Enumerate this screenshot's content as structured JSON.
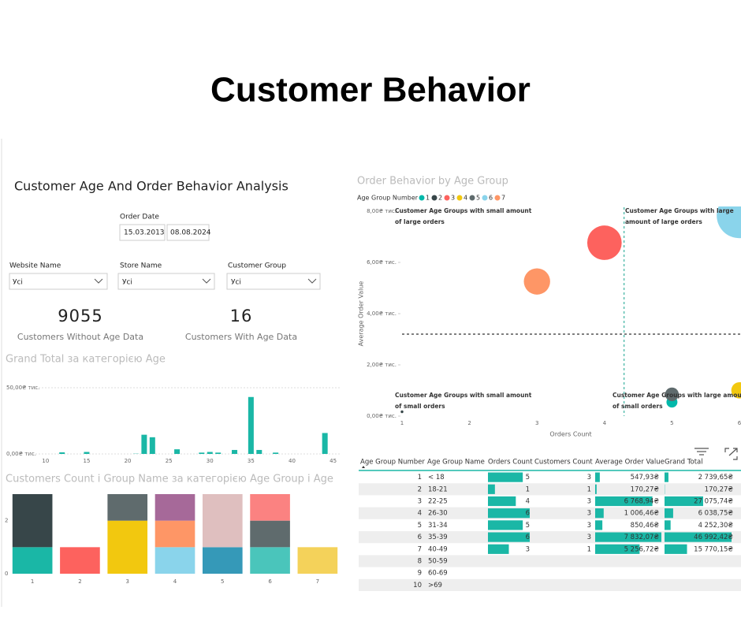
{
  "header": {
    "title": "Customer Behavior"
  },
  "report": {
    "title": "Customer Age And Order Behavior Analysis"
  },
  "filters": {
    "order_date": {
      "label": "Order Date",
      "start": "15.03.2013",
      "end": "08.08.2024"
    },
    "dropdowns": [
      {
        "label": "Website Name",
        "value": "Усі"
      },
      {
        "label": "Store Name",
        "value": "Усі"
      },
      {
        "label": "Customer Group",
        "value": "Усі"
      }
    ]
  },
  "kpis": [
    {
      "value": 9055,
      "label": "Customers Without Age Data"
    },
    {
      "value": 16,
      "label": "Customers With Age Data"
    }
  ],
  "chart_data": [
    {
      "type": "bar",
      "title": "Grand Total за категорією Age",
      "x": [
        12,
        15,
        21,
        22,
        23,
        26,
        29,
        30,
        31,
        33,
        35,
        36,
        38,
        44
      ],
      "values": [
        1.2,
        1.5,
        0.17,
        14.5,
        12.6,
        3.5,
        1,
        1.5,
        1,
        3,
        43,
        3,
        1,
        15.8
      ],
      "color": "#1ab7a6",
      "xlim": [
        8,
        46
      ],
      "xticks": [
        10,
        15,
        20,
        25,
        30,
        35,
        40,
        45
      ],
      "ylim": [
        0,
        50
      ],
      "yticks": [
        {
          "value": 0,
          "label": "0,00₴ тис."
        },
        {
          "value": 50,
          "label": "50,00₴ тис."
        }
      ],
      "grid": true
    },
    {
      "type": "stacked_bar",
      "title": "Customers Count і Group Name за категорією Age Group і Age",
      "categories": [
        "1",
        "2",
        "3",
        "4",
        "5",
        "6",
        "7"
      ],
      "series": [
        {
          "color": "#1ab7a6",
          "values": [
            1,
            null,
            null,
            null,
            null,
            null,
            null
          ]
        },
        {
          "color": "#374649",
          "values": [
            2,
            null,
            null,
            null,
            null,
            null,
            null
          ]
        },
        {
          "color": "#fd625e",
          "values": [
            null,
            1,
            null,
            null,
            null,
            null,
            null
          ]
        },
        {
          "color": "#f2c80f",
          "values": [
            null,
            null,
            2,
            null,
            null,
            null,
            null
          ]
        },
        {
          "color": "#8ad4eb",
          "values": [
            null,
            null,
            null,
            1,
            null,
            null,
            null
          ]
        },
        {
          "color": "#fe9666",
          "values": [
            null,
            null,
            null,
            1,
            null,
            null,
            null
          ]
        },
        {
          "color": "#a66999",
          "values": [
            null,
            null,
            null,
            1,
            null,
            null,
            null
          ]
        },
        {
          "color": "#3599b8",
          "values": [
            null,
            null,
            null,
            null,
            1,
            null,
            null
          ]
        },
        {
          "color": "#dfbfbf",
          "values": [
            null,
            null,
            null,
            null,
            2,
            null,
            null
          ]
        },
        {
          "color": "#4ac5bb",
          "values": [
            null,
            null,
            null,
            null,
            null,
            1,
            null
          ]
        },
        {
          "color": "#5f6b6d",
          "values": [
            null,
            null,
            1,
            null,
            null,
            1,
            null
          ]
        },
        {
          "color": "#fb8281",
          "values": [
            null,
            null,
            null,
            null,
            null,
            1,
            null
          ]
        },
        {
          "color": "#f4d25a",
          "values": [
            null,
            null,
            null,
            null,
            null,
            null,
            1
          ]
        }
      ],
      "ylim": [
        0,
        3
      ],
      "yticks": [
        0,
        2
      ]
    },
    {
      "type": "bubble",
      "title": "Order Behavior by Age Group",
      "legend_title": "Age Group Number",
      "series": [
        {
          "name": "1",
          "color": "#01b8aa",
          "x": [
            5
          ],
          "values": [
            0.548
          ],
          "sizes": [
            2.74
          ]
        },
        {
          "name": "2",
          "color": "#374649",
          "x": [
            1
          ],
          "values": [
            0.17
          ],
          "sizes": [
            0.17
          ]
        },
        {
          "name": "3",
          "color": "#fd625e",
          "x": [
            4
          ],
          "values": [
            6.769
          ],
          "sizes": [
            27.08
          ]
        },
        {
          "name": "4",
          "color": "#f2c80f",
          "x": [
            6
          ],
          "values": [
            1.006
          ],
          "sizes": [
            6.04
          ]
        },
        {
          "name": "5",
          "color": "#5f6b6d",
          "x": [
            5
          ],
          "values": [
            0.85
          ],
          "sizes": [
            4.25
          ]
        },
        {
          "name": "6",
          "color": "#8ad4eb",
          "x": [
            6
          ],
          "values": [
            7.832
          ],
          "sizes": [
            46.99
          ]
        },
        {
          "name": "7",
          "color": "#fe9666",
          "x": [
            3
          ],
          "values": [
            5.257
          ],
          "sizes": [
            15.77
          ]
        }
      ],
      "x_label": "Orders Count",
      "y_label": "Average Order Value",
      "xlim": [
        1,
        6
      ],
      "xticks": [
        1,
        2,
        3,
        4,
        5,
        6
      ],
      "ylim": [
        0,
        8
      ],
      "yticks": [
        {
          "value": 0,
          "label": "0,00₴ тис."
        },
        {
          "value": 2,
          "label": "2,00₴ тис."
        },
        {
          "value": 4,
          "label": "4,00₴ тис."
        },
        {
          "value": 6,
          "label": "6,00₴ тис."
        },
        {
          "value": 8,
          "label": "8,00₴ тис."
        }
      ],
      "reference_lines": {
        "x": 4.29,
        "y": 3.2
      },
      "annotations": [
        "Customer Age Groups with small amount of large orders",
        "Customer Age Groups with large amount of large orders",
        "Customer Age Groups with small amount of small orders",
        "Customer Age Groups with large amount of small orders"
      ]
    }
  ],
  "table": {
    "columns": [
      "Age Group Number",
      "Age Group Name",
      "Orders Count",
      "Customers Count",
      "Average Order Value",
      "Grand Total"
    ],
    "rows": [
      {
        "number": 1,
        "name": "< 18",
        "orders": 5,
        "customers": 3,
        "avg": 547.93,
        "avg_label": "547,93₴",
        "total": 2739.65,
        "total_label": "2 739,65₴"
      },
      {
        "number": 2,
        "name": "18-21",
        "orders": 1,
        "customers": 1,
        "avg": 170.27,
        "avg_label": "170,27₴",
        "total": 170.27,
        "total_label": "170,27₴"
      },
      {
        "number": 3,
        "name": "22-25",
        "orders": 4,
        "customers": 3,
        "avg": 6768.94,
        "avg_label": "6 768,94₴",
        "total": 27075.74,
        "total_label": "27 075,74₴"
      },
      {
        "number": 4,
        "name": "26-30",
        "orders": 6,
        "customers": 3,
        "avg": 1006.46,
        "avg_label": "1 006,46₴",
        "total": 6038.75,
        "total_label": "6 038,75₴"
      },
      {
        "number": 5,
        "name": "31-34",
        "orders": 5,
        "customers": 3,
        "avg": 850.46,
        "avg_label": "850,46₴",
        "total": 4252.3,
        "total_label": "4 252,30₴"
      },
      {
        "number": 6,
        "name": "35-39",
        "orders": 6,
        "customers": 3,
        "avg": 7832.07,
        "avg_label": "7 832,07₴",
        "total": 46992.42,
        "total_label": "46 992,42₴"
      },
      {
        "number": 7,
        "name": "40-49",
        "orders": 3,
        "customers": 1,
        "avg": 5256.72,
        "avg_label": "5 256,72₴",
        "total": 15770.15,
        "total_label": "15 770,15₴"
      },
      {
        "number": 8,
        "name": "50-59"
      },
      {
        "number": 9,
        "name": "60-69"
      },
      {
        "number": 10,
        "name": ">69"
      }
    ]
  }
}
